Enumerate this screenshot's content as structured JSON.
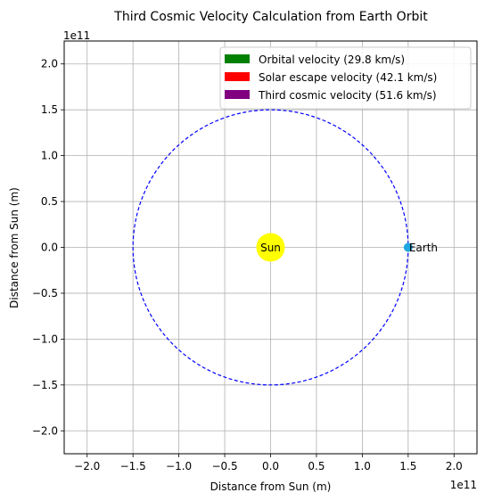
{
  "chart_data": {
    "type": "scatter",
    "title": "Third Cosmic Velocity Calculation from Earth Orbit",
    "xlabel": "Distance from Sun (m)",
    "ylabel": "Distance from Sun (m)",
    "x_offset_label": "1e11",
    "y_offset_label": "1e11",
    "xlim": [
      -2.25,
      2.25
    ],
    "ylim": [
      -2.25,
      2.25
    ],
    "scale_exponent": 11,
    "grid": true,
    "x_ticks": [
      -2.0,
      -1.5,
      -1.0,
      -0.5,
      0.0,
      0.5,
      1.0,
      1.5,
      2.0
    ],
    "y_ticks": [
      -2.0,
      -1.5,
      -1.0,
      -0.5,
      0.0,
      0.5,
      1.0,
      1.5,
      2.0
    ],
    "x_tick_labels": [
      "−2.0",
      "−1.5",
      "−1.0",
      "−0.5",
      "0.0",
      "0.5",
      "1.0",
      "1.5",
      "2.0"
    ],
    "y_tick_labels": [
      "−2.0",
      "−1.5",
      "−1.0",
      "−0.5",
      "0.0",
      "0.5",
      "1.0",
      "1.5",
      "2.0"
    ],
    "orbit": {
      "radius": 1.5,
      "color": "#0000ff",
      "style": "dashed"
    },
    "bodies": [
      {
        "name": "Sun",
        "x": 0.0,
        "y": 0.0,
        "color": "#ffff00",
        "label": "Sun"
      },
      {
        "name": "Earth",
        "x": 1.5,
        "y": 0.0,
        "color": "#1fa7e0",
        "label": "Earth"
      }
    ],
    "legend": {
      "placement": "upper-right",
      "entries": [
        {
          "label": "Orbital velocity (29.8 km/s)",
          "color": "#008000"
        },
        {
          "label": "Solar escape velocity (42.1 km/s)",
          "color": "#ff0000"
        },
        {
          "label": "Third cosmic velocity (51.6 km/s)",
          "color": "#800080"
        }
      ]
    }
  }
}
